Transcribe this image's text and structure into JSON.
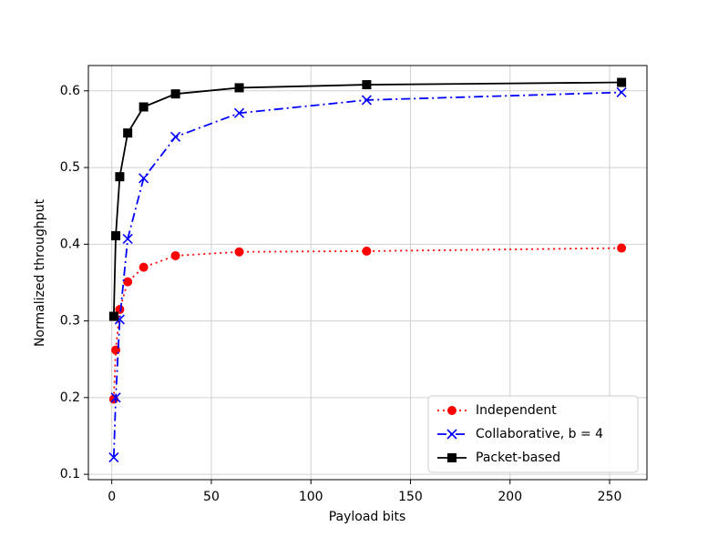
{
  "chart_data": {
    "type": "line",
    "x_label": "Payload bits",
    "y_label": "Normalized throughput",
    "x": [
      1,
      2,
      4,
      8,
      16,
      32,
      64,
      128,
      256
    ],
    "series": [
      {
        "name": "Independent",
        "color": "#ff0000",
        "marker": "circle",
        "dash": "dotted",
        "values": [
          0.198,
          0.262,
          0.315,
          0.351,
          0.37,
          0.385,
          0.39,
          0.391,
          0.395
        ]
      },
      {
        "name": "Collaborative, b = 4",
        "color": "#0000ff",
        "marker": "x",
        "dash": "dashdot",
        "values": [
          0.122,
          0.2,
          0.302,
          0.407,
          0.486,
          0.54,
          0.571,
          0.588,
          0.598
        ]
      },
      {
        "name": "Packet-based",
        "color": "#000000",
        "marker": "square",
        "dash": "solid",
        "values": [
          0.306,
          0.411,
          0.488,
          0.545,
          0.579,
          0.596,
          0.604,
          0.608,
          0.611
        ]
      }
    ],
    "xlim": [
      -11.75,
      268.75
    ],
    "ylim": [
      0.093,
      0.633
    ],
    "xticks": [
      0,
      50,
      100,
      150,
      200,
      250
    ],
    "yticks": [
      0.1,
      0.2,
      0.3,
      0.4,
      0.5,
      0.6
    ],
    "grid": true,
    "legend": "lower right"
  }
}
